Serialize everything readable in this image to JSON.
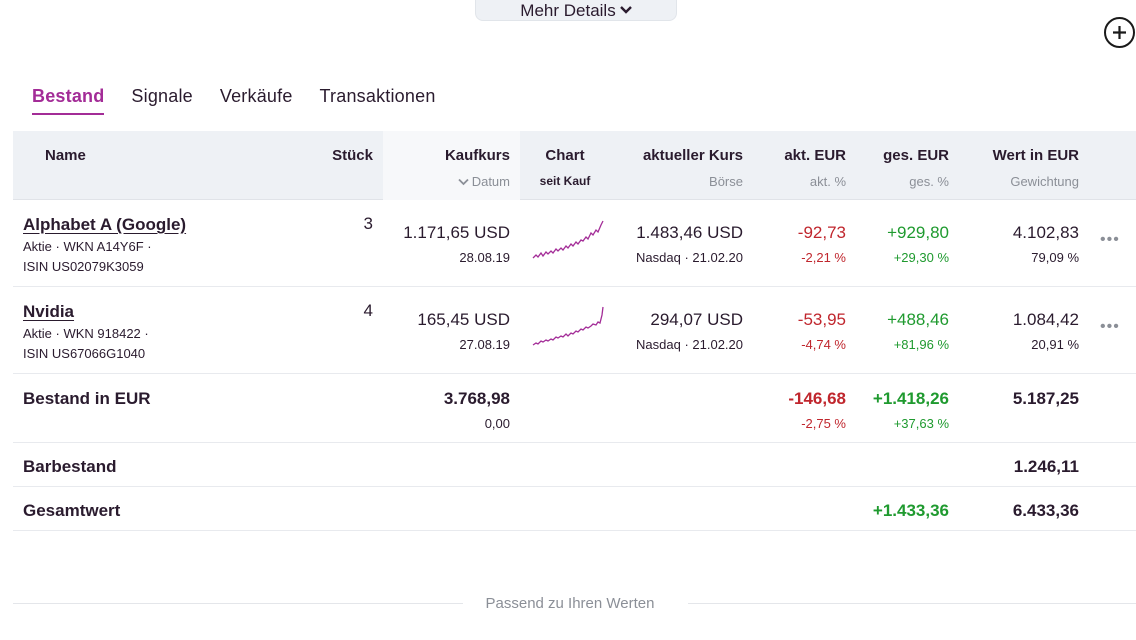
{
  "details_button": {
    "label": "Mehr Details",
    "icon": "chevron-down-icon"
  },
  "add_button": {
    "icon": "plus-circle-icon"
  },
  "tabs": [
    {
      "label": "Bestand",
      "active": true
    },
    {
      "label": "Signale",
      "active": false
    },
    {
      "label": "Verkäufe",
      "active": false
    },
    {
      "label": "Transaktionen",
      "active": false
    }
  ],
  "columns": {
    "name": "Name",
    "stueck": "Stück",
    "kaufkurs": "Kaufkurs",
    "kaufkurs_sub": "Datum",
    "chart": "Chart",
    "chart_sub": "seit Kauf",
    "aktueller_kurs": "aktueller Kurs",
    "aktueller_kurs_sub": "Börse",
    "akt_eur": "akt. EUR",
    "akt_eur_sub": "akt. %",
    "ges_eur": "ges. EUR",
    "ges_eur_sub": "ges. %",
    "wert": "Wert in EUR",
    "wert_sub": "Gewichtung"
  },
  "rows": [
    {
      "name": "Alphabet A (Google)",
      "meta1": "Aktie · WKN A14Y6F ·",
      "meta2": "ISIN US02079K3059",
      "stueck": "3",
      "kaufkurs": "1.171,65 USD",
      "kaufdatum": "28.08.19",
      "kurs": "1.483,46 USD",
      "boerse": "Nasdaq · 21.02.20",
      "akt_eur": "-92,73",
      "akt_pct": "-2,21 %",
      "ges_eur": "+929,80",
      "ges_pct": "+29,30 %",
      "wert": "4.102,83",
      "gewichtung": "79,09 %",
      "more": "•••"
    },
    {
      "name": "Nvidia",
      "meta1": "Aktie · WKN 918422 ·",
      "meta2": "ISIN US67066G1040",
      "stueck": "4",
      "kaufkurs": "165,45 USD",
      "kaufdatum": "27.08.19",
      "kurs": "294,07 USD",
      "boerse": "Nasdaq · 21.02.20",
      "akt_eur": "-53,95",
      "akt_pct": "-4,74 %",
      "ges_eur": "+488,46",
      "ges_pct": "+81,96 %",
      "wert": "1.084,42",
      "gewichtung": "20,91 %",
      "more": "•••"
    }
  ],
  "bestand": {
    "label": "Bestand in EUR",
    "kaufkurs": "3.768,98",
    "kaufkurs_sub": "0,00",
    "akt_eur": "-146,68",
    "akt_pct": "-2,75 %",
    "ges_eur": "+1.418,26",
    "ges_pct": "+37,63 %",
    "wert": "5.187,25"
  },
  "barbestand": {
    "label": "Barbestand",
    "wert": "1.246,11"
  },
  "gesamtwert": {
    "label": "Gesamtwert",
    "ges_eur": "+1.433,36",
    "wert": "6.433,36"
  },
  "footer": {
    "label": "Passend zu Ihren Werten"
  },
  "colors": {
    "accent": "#a32c97",
    "negative": "#c0262d",
    "positive": "#1f9a2f",
    "sparkline": "#a32c97"
  }
}
